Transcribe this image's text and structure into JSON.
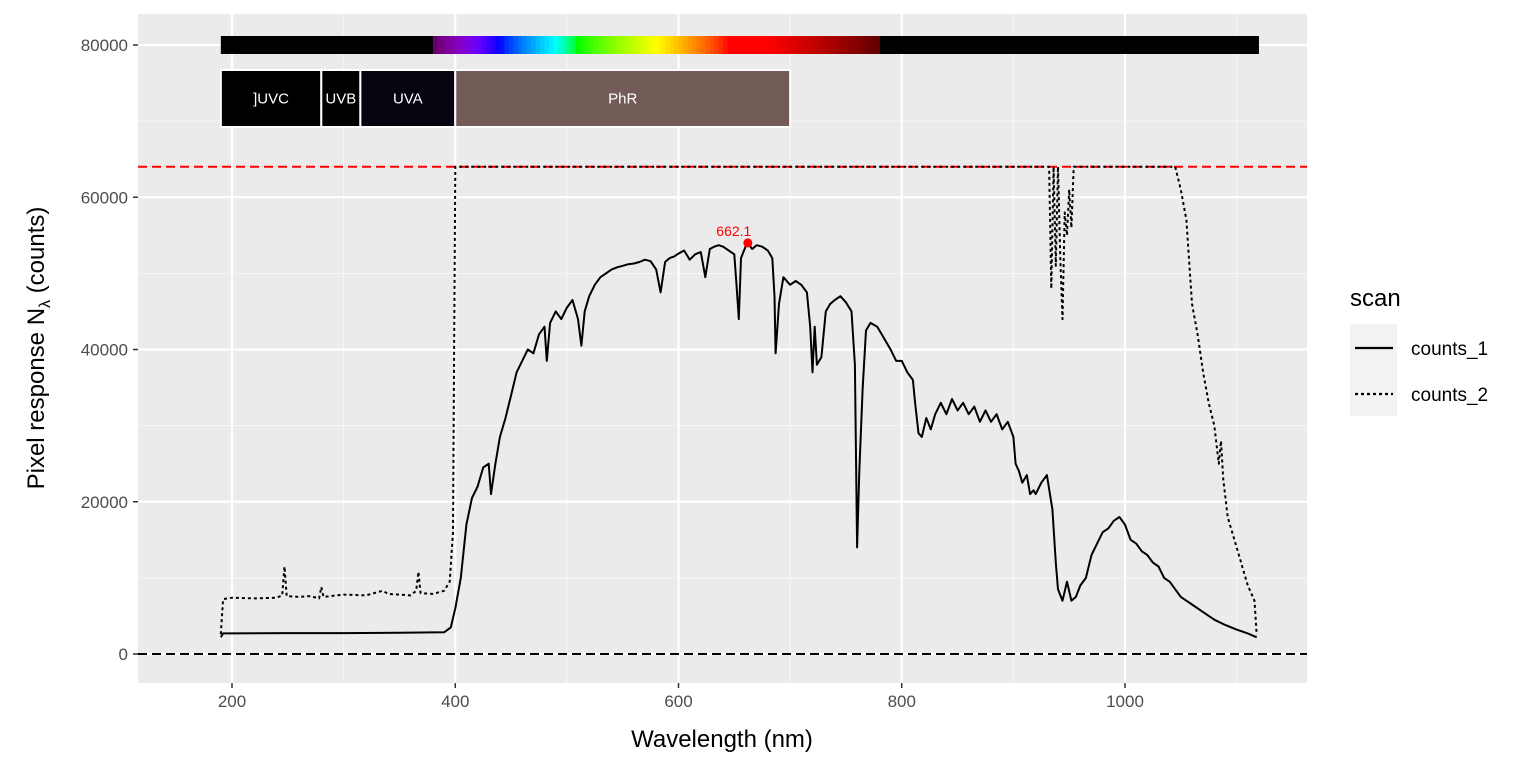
{
  "chart_data": {
    "type": "line",
    "xlabel": "Wavelength (nm)",
    "ylabel_main": "Pixel  response  N",
    "ylabel_sub": "λ",
    "ylabel_tail": "  (counts)",
    "xlim": [
      120,
      1160
    ],
    "ylim": [
      -4000,
      84000
    ],
    "x_ticks": [
      200,
      400,
      600,
      800,
      1000
    ],
    "y_ticks": [
      0,
      20000,
      40000,
      60000,
      80000
    ],
    "x_tick_labels": [
      "200",
      "400",
      "600",
      "800",
      "1000"
    ],
    "y_tick_labels": [
      "0",
      "20000",
      "40000",
      "60000",
      "80000"
    ],
    "grid": true,
    "legend": {
      "title": "scan",
      "placement": "right",
      "entries": [
        {
          "label": "counts_1",
          "linestyle": "solid"
        },
        {
          "label": "counts_2",
          "linestyle": "dotted"
        }
      ]
    },
    "reference_lines": [
      {
        "y": 64000,
        "color": "#ff0000",
        "style": "dashed"
      },
      {
        "y": 0,
        "color": "#000000",
        "style": "dashed"
      }
    ],
    "peak_annotation": {
      "x": 662.1,
      "y": 54000,
      "label": "662.1",
      "color": "#ff0000"
    },
    "wavelength_bands": [
      {
        "label": "]UVC",
        "x0": 190,
        "x1": 280,
        "fill": "#000000"
      },
      {
        "label": "UVB",
        "x0": 280,
        "x1": 315,
        "fill": "#000000"
      },
      {
        "label": "UVA",
        "x0": 315,
        "x1": 400,
        "fill": "#05040f"
      },
      {
        "label": "PhR",
        "x0": 400,
        "x1": 700,
        "fill": "#735c57"
      }
    ],
    "color_bar": {
      "x0": 190,
      "x1": 1120,
      "y": 80000
    },
    "series": [
      {
        "name": "counts_1",
        "linestyle": "solid",
        "points": [
          [
            190,
            2200
          ],
          [
            192,
            2700
          ],
          [
            200,
            2700
          ],
          [
            250,
            2750
          ],
          [
            300,
            2750
          ],
          [
            350,
            2800
          ],
          [
            390,
            2850
          ],
          [
            396,
            3500
          ],
          [
            400,
            6000
          ],
          [
            405,
            10000
          ],
          [
            410,
            17000
          ],
          [
            415,
            20500
          ],
          [
            420,
            22000
          ],
          [
            425,
            24500
          ],
          [
            430,
            25000
          ],
          [
            432,
            21000
          ],
          [
            436,
            25000
          ],
          [
            440,
            28500
          ],
          [
            445,
            31000
          ],
          [
            450,
            34000
          ],
          [
            455,
            37000
          ],
          [
            460,
            38500
          ],
          [
            465,
            40000
          ],
          [
            470,
            39500
          ],
          [
            475,
            42000
          ],
          [
            480,
            43000
          ],
          [
            482,
            38500
          ],
          [
            485,
            43500
          ],
          [
            490,
            45000
          ],
          [
            495,
            44000
          ],
          [
            500,
            45500
          ],
          [
            505,
            46500
          ],
          [
            510,
            44000
          ],
          [
            513,
            40500
          ],
          [
            516,
            45000
          ],
          [
            520,
            47000
          ],
          [
            525,
            48500
          ],
          [
            530,
            49500
          ],
          [
            535,
            50000
          ],
          [
            540,
            50500
          ],
          [
            545,
            50800
          ],
          [
            550,
            51000
          ],
          [
            555,
            51200
          ],
          [
            560,
            51300
          ],
          [
            565,
            51500
          ],
          [
            570,
            51800
          ],
          [
            575,
            51600
          ],
          [
            580,
            50500
          ],
          [
            584,
            47500
          ],
          [
            588,
            51500
          ],
          [
            592,
            52000
          ],
          [
            596,
            52200
          ],
          [
            600,
            52600
          ],
          [
            605,
            53000
          ],
          [
            610,
            51800
          ],
          [
            615,
            52500
          ],
          [
            620,
            52800
          ],
          [
            624,
            49500
          ],
          [
            628,
            53200
          ],
          [
            632,
            53500
          ],
          [
            636,
            53700
          ],
          [
            640,
            53500
          ],
          [
            645,
            53000
          ],
          [
            650,
            52500
          ],
          [
            652,
            48500
          ],
          [
            654,
            44000
          ],
          [
            656,
            52000
          ],
          [
            660,
            53500
          ],
          [
            662,
            54000
          ],
          [
            666,
            53200
          ],
          [
            670,
            53700
          ],
          [
            675,
            53500
          ],
          [
            680,
            53000
          ],
          [
            684,
            52000
          ],
          [
            686,
            47000
          ],
          [
            687,
            39500
          ],
          [
            690,
            46000
          ],
          [
            694,
            49500
          ],
          [
            700,
            48500
          ],
          [
            705,
            49000
          ],
          [
            710,
            48500
          ],
          [
            715,
            47500
          ],
          [
            718,
            43000
          ],
          [
            720,
            37000
          ],
          [
            722,
            43000
          ],
          [
            724,
            38000
          ],
          [
            728,
            39000
          ],
          [
            732,
            45000
          ],
          [
            736,
            46000
          ],
          [
            740,
            46500
          ],
          [
            745,
            47000
          ],
          [
            750,
            46200
          ],
          [
            755,
            45000
          ],
          [
            758,
            38000
          ],
          [
            760,
            14000
          ],
          [
            762,
            24000
          ],
          [
            765,
            35000
          ],
          [
            768,
            42500
          ],
          [
            772,
            43500
          ],
          [
            778,
            43000
          ],
          [
            782,
            42000
          ],
          [
            786,
            41000
          ],
          [
            790,
            40000
          ],
          [
            795,
            38500
          ],
          [
            800,
            38500
          ],
          [
            805,
            37000
          ],
          [
            810,
            36000
          ],
          [
            812,
            33000
          ],
          [
            815,
            29000
          ],
          [
            818,
            28500
          ],
          [
            822,
            31000
          ],
          [
            826,
            29500
          ],
          [
            830,
            31500
          ],
          [
            835,
            33000
          ],
          [
            840,
            31500
          ],
          [
            845,
            33500
          ],
          [
            850,
            32000
          ],
          [
            855,
            33000
          ],
          [
            860,
            31500
          ],
          [
            865,
            32500
          ],
          [
            870,
            30500
          ],
          [
            875,
            32000
          ],
          [
            880,
            30500
          ],
          [
            885,
            31500
          ],
          [
            890,
            29500
          ],
          [
            895,
            30500
          ],
          [
            900,
            28500
          ],
          [
            902,
            25000
          ],
          [
            905,
            24000
          ],
          [
            908,
            22500
          ],
          [
            912,
            23500
          ],
          [
            915,
            21000
          ],
          [
            918,
            21500
          ],
          [
            920,
            21000
          ],
          [
            925,
            22500
          ],
          [
            930,
            23500
          ],
          [
            935,
            19000
          ],
          [
            938,
            12000
          ],
          [
            940,
            8500
          ],
          [
            944,
            7000
          ],
          [
            948,
            9500
          ],
          [
            952,
            7000
          ],
          [
            956,
            7500
          ],
          [
            960,
            9000
          ],
          [
            965,
            10000
          ],
          [
            970,
            13000
          ],
          [
            975,
            14500
          ],
          [
            980,
            16000
          ],
          [
            985,
            16500
          ],
          [
            990,
            17500
          ],
          [
            995,
            18000
          ],
          [
            1000,
            17000
          ],
          [
            1005,
            15000
          ],
          [
            1010,
            14500
          ],
          [
            1015,
            13500
          ],
          [
            1020,
            13000
          ],
          [
            1025,
            12000
          ],
          [
            1030,
            11500
          ],
          [
            1035,
            10000
          ],
          [
            1040,
            9500
          ],
          [
            1045,
            8500
          ],
          [
            1050,
            7500
          ],
          [
            1060,
            6500
          ],
          [
            1070,
            5500
          ],
          [
            1080,
            4500
          ],
          [
            1090,
            3800
          ],
          [
            1100,
            3200
          ],
          [
            1110,
            2700
          ],
          [
            1118,
            2200
          ]
        ]
      },
      {
        "name": "counts_2",
        "linestyle": "dotted",
        "points": [
          [
            190,
            2600
          ],
          [
            192,
            7200
          ],
          [
            200,
            7400
          ],
          [
            220,
            7300
          ],
          [
            240,
            7400
          ],
          [
            245,
            7700
          ],
          [
            247,
            11500
          ],
          [
            249,
            7600
          ],
          [
            260,
            7500
          ],
          [
            270,
            7600
          ],
          [
            278,
            7300
          ],
          [
            280,
            8800
          ],
          [
            282,
            7500
          ],
          [
            300,
            7800
          ],
          [
            320,
            7700
          ],
          [
            335,
            8300
          ],
          [
            340,
            7900
          ],
          [
            350,
            7800
          ],
          [
            360,
            7700
          ],
          [
            365,
            8300
          ],
          [
            367,
            10800
          ],
          [
            369,
            8000
          ],
          [
            380,
            7900
          ],
          [
            390,
            8300
          ],
          [
            395,
            9500
          ],
          [
            398,
            16000
          ],
          [
            400,
            64000
          ],
          [
            450,
            64000
          ],
          [
            500,
            64000
          ],
          [
            550,
            64000
          ],
          [
            600,
            64000
          ],
          [
            650,
            64000
          ],
          [
            700,
            64000
          ],
          [
            750,
            64000
          ],
          [
            800,
            64000
          ],
          [
            850,
            64000
          ],
          [
            900,
            64000
          ],
          [
            932,
            64000
          ],
          [
            934,
            48000
          ],
          [
            936,
            64000
          ],
          [
            938,
            51000
          ],
          [
            940,
            64000
          ],
          [
            942,
            52000
          ],
          [
            944,
            44000
          ],
          [
            946,
            58000
          ],
          [
            948,
            55000
          ],
          [
            950,
            61000
          ],
          [
            952,
            56000
          ],
          [
            954,
            64000
          ],
          [
            980,
            64000
          ],
          [
            1000,
            64000
          ],
          [
            1020,
            64000
          ],
          [
            1045,
            64000
          ],
          [
            1050,
            61000
          ],
          [
            1055,
            57000
          ],
          [
            1060,
            46000
          ],
          [
            1065,
            42000
          ],
          [
            1070,
            37000
          ],
          [
            1075,
            33000
          ],
          [
            1080,
            30000
          ],
          [
            1084,
            25000
          ],
          [
            1086,
            28000
          ],
          [
            1088,
            23000
          ],
          [
            1092,
            18000
          ],
          [
            1098,
            15000
          ],
          [
            1102,
            13000
          ],
          [
            1106,
            11000
          ],
          [
            1110,
            9000
          ],
          [
            1116,
            7000
          ],
          [
            1118,
            2500
          ]
        ]
      }
    ]
  }
}
